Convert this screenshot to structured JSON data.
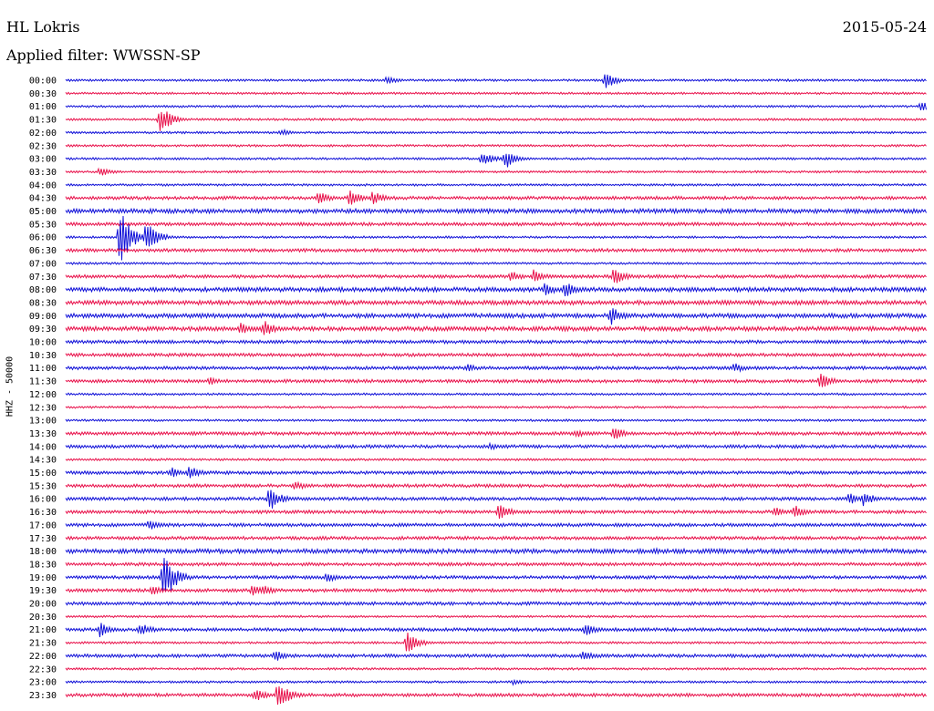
{
  "header": {
    "station": "HL Lokris",
    "date": "2015-05-24",
    "filter_label": "Applied filter: WWSSN-SP",
    "channel_label": "HHZ - 50000"
  },
  "colors": {
    "blue": "#1010d8",
    "red": "#e8104a"
  },
  "chart_data": {
    "type": "line",
    "title": "HL Lokris",
    "subtitle": "Applied filter: WWSSN-SP",
    "ylabel": "HHZ - 50000",
    "xlim_minutes": [
      0,
      30
    ],
    "row_labels": [
      "00:00",
      "00:30",
      "01:00",
      "01:30",
      "02:00",
      "02:30",
      "03:00",
      "03:30",
      "04:00",
      "04:30",
      "05:00",
      "05:30",
      "06:00",
      "06:30",
      "07:00",
      "07:30",
      "08:00",
      "08:30",
      "09:00",
      "09:30",
      "10:00",
      "10:30",
      "11:00",
      "11:30",
      "12:00",
      "12:30",
      "13:00",
      "13:30",
      "14:00",
      "14:30",
      "15:00",
      "15:30",
      "16:00",
      "16:30",
      "17:00",
      "17:30",
      "18:00",
      "18:30",
      "19:00",
      "19:30",
      "20:00",
      "20:30",
      "21:00",
      "21:30",
      "22:00",
      "22:30",
      "23:00",
      "23:30"
    ],
    "trace_colors_cycle": [
      "blue",
      "red"
    ],
    "noise_level": [
      1,
      1,
      1,
      1,
      1,
      1,
      1,
      1,
      1,
      1.5,
      2,
      1.5,
      1,
      1.5,
      1,
      1.5,
      2,
      2,
      2,
      2,
      1.5,
      1.5,
      1.5,
      1.5,
      1,
      1,
      1,
      1.5,
      1.5,
      1,
      1.5,
      1.5,
      1.5,
      1.5,
      1.5,
      1.5,
      2,
      1.5,
      1.5,
      1.5,
      1.5,
      1,
      1.5,
      1,
      1.5,
      1,
      1,
      1.5
    ],
    "events": [
      {
        "row": 0,
        "minute": 11.2,
        "amplitude": 5
      },
      {
        "row": 0,
        "minute": 18.8,
        "amplitude": 10
      },
      {
        "row": 2,
        "minute": 29.8,
        "amplitude": 6
      },
      {
        "row": 3,
        "minute": 3.3,
        "amplitude": 16
      },
      {
        "row": 4,
        "minute": 7.5,
        "amplitude": 4
      },
      {
        "row": 6,
        "minute": 14.5,
        "amplitude": 9
      },
      {
        "row": 6,
        "minute": 15.3,
        "amplitude": 12
      },
      {
        "row": 7,
        "minute": 1.2,
        "amplitude": 6
      },
      {
        "row": 9,
        "minute": 8.8,
        "amplitude": 8
      },
      {
        "row": 9,
        "minute": 9.9,
        "amplitude": 9
      },
      {
        "row": 9,
        "minute": 10.7,
        "amplitude": 8
      },
      {
        "row": 12,
        "minute": 1.9,
        "amplitude": 32
      },
      {
        "row": 12,
        "minute": 2.8,
        "amplitude": 18
      },
      {
        "row": 15,
        "minute": 15.5,
        "amplitude": 7
      },
      {
        "row": 15,
        "minute": 16.3,
        "amplitude": 8
      },
      {
        "row": 15,
        "minute": 19.1,
        "amplitude": 10
      },
      {
        "row": 16,
        "minute": 16.7,
        "amplitude": 8
      },
      {
        "row": 16,
        "minute": 17.4,
        "amplitude": 10
      },
      {
        "row": 18,
        "minute": 19.0,
        "amplitude": 11
      },
      {
        "row": 19,
        "minute": 6.1,
        "amplitude": 7
      },
      {
        "row": 19,
        "minute": 6.9,
        "amplitude": 10
      },
      {
        "row": 19,
        "minute": 29.5,
        "amplitude": 4
      },
      {
        "row": 22,
        "minute": 14.0,
        "amplitude": 5
      },
      {
        "row": 22,
        "minute": 23.3,
        "amplitude": 6
      },
      {
        "row": 23,
        "minute": 5.0,
        "amplitude": 5
      },
      {
        "row": 23,
        "minute": 26.3,
        "amplitude": 10
      },
      {
        "row": 27,
        "minute": 17.8,
        "amplitude": 5
      },
      {
        "row": 27,
        "minute": 19.1,
        "amplitude": 8
      },
      {
        "row": 28,
        "minute": 14.8,
        "amplitude": 4
      },
      {
        "row": 30,
        "minute": 3.7,
        "amplitude": 6
      },
      {
        "row": 30,
        "minute": 4.3,
        "amplitude": 8
      },
      {
        "row": 31,
        "minute": 8.0,
        "amplitude": 6
      },
      {
        "row": 32,
        "minute": 7.1,
        "amplitude": 14
      },
      {
        "row": 32,
        "minute": 27.3,
        "amplitude": 7
      },
      {
        "row": 32,
        "minute": 27.8,
        "amplitude": 9
      },
      {
        "row": 33,
        "minute": 15.1,
        "amplitude": 10
      },
      {
        "row": 33,
        "minute": 24.7,
        "amplitude": 6
      },
      {
        "row": 33,
        "minute": 25.4,
        "amplitude": 8
      },
      {
        "row": 34,
        "minute": 2.9,
        "amplitude": 6
      },
      {
        "row": 36,
        "minute": 20.5,
        "amplitude": 4
      },
      {
        "row": 38,
        "minute": 3.4,
        "amplitude": 30
      },
      {
        "row": 38,
        "minute": 9.1,
        "amplitude": 6
      },
      {
        "row": 39,
        "minute": 3.0,
        "amplitude": 6
      },
      {
        "row": 39,
        "minute": 6.5,
        "amplitude": 6
      },
      {
        "row": 39,
        "minute": 6.9,
        "amplitude": 6
      },
      {
        "row": 42,
        "minute": 1.2,
        "amplitude": 9
      },
      {
        "row": 42,
        "minute": 2.6,
        "amplitude": 8
      },
      {
        "row": 42,
        "minute": 18.1,
        "amplitude": 8
      },
      {
        "row": 43,
        "minute": 11.9,
        "amplitude": 14
      },
      {
        "row": 44,
        "minute": 7.3,
        "amplitude": 7
      },
      {
        "row": 44,
        "minute": 18.0,
        "amplitude": 6
      },
      {
        "row": 46,
        "minute": 15.6,
        "amplitude": 4
      },
      {
        "row": 47,
        "minute": 6.6,
        "amplitude": 8
      },
      {
        "row": 47,
        "minute": 7.4,
        "amplitude": 17
      }
    ]
  }
}
